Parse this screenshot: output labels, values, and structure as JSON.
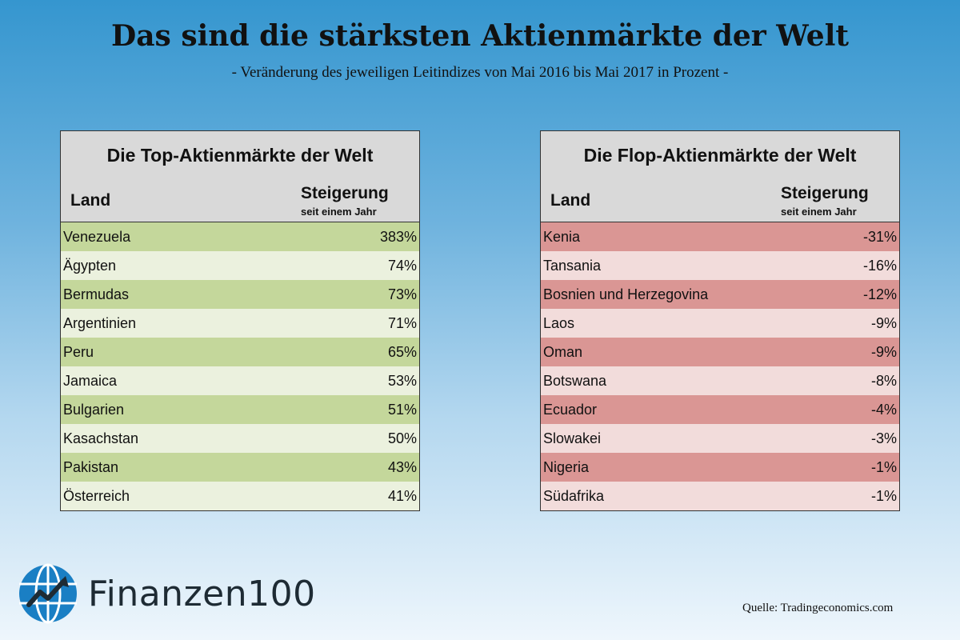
{
  "header": {
    "title": "Das sind die stärksten Aktienmärkte der Welt",
    "subtitle": "- Veränderung des jeweiligen Leitindizes von Mai 2016 bis Mai 2017 in Prozent -"
  },
  "top_table": {
    "title": "Die Top-Aktienmärkte der Welt",
    "col_country": "Land",
    "col_change": "Steigerung",
    "col_change_sub": "seit einem Jahr",
    "rows": [
      {
        "country": "Venezuela",
        "value": "383%"
      },
      {
        "country": "Ägypten",
        "value": "74%"
      },
      {
        "country": "Bermudas",
        "value": "73%"
      },
      {
        "country": "Argentinien",
        "value": "71%"
      },
      {
        "country": "Peru",
        "value": "65%"
      },
      {
        "country": "Jamaica",
        "value": "53%"
      },
      {
        "country": "Bulgarien",
        "value": "51%"
      },
      {
        "country": "Kasachstan",
        "value": "50%"
      },
      {
        "country": "Pakistan",
        "value": "43%"
      },
      {
        "country": "Österreich",
        "value": "41%"
      }
    ]
  },
  "flop_table": {
    "title": "Die Flop-Aktienmärkte der Welt",
    "col_country": "Land",
    "col_change": "Steigerung",
    "col_change_sub": "seit einem Jahr",
    "rows": [
      {
        "country": "Kenia",
        "value": "-31%"
      },
      {
        "country": "Tansania",
        "value": "-16%"
      },
      {
        "country": "Bosnien und Herzegovina",
        "value": "-12%"
      },
      {
        "country": "Laos",
        "value": "-9%"
      },
      {
        "country": "Oman",
        "value": "-9%"
      },
      {
        "country": "Botswana",
        "value": "-8%"
      },
      {
        "country": "Ecuador",
        "value": "-4%"
      },
      {
        "country": "Slowakei",
        "value": "-3%"
      },
      {
        "country": "Nigeria",
        "value": "-1%"
      },
      {
        "country": "Südafrika",
        "value": "-1%"
      }
    ]
  },
  "footer": {
    "logo_text": "Finanzen100",
    "logo_icon": "globe-chart-icon",
    "source": "Quelle: Tradingeconomics.com"
  },
  "colors": {
    "top_odd": "#c4d79b",
    "top_even": "#ebf1de",
    "flop_odd": "#da9694",
    "flop_even": "#f2dcdb",
    "logo_blue": "#1a7fc4"
  }
}
